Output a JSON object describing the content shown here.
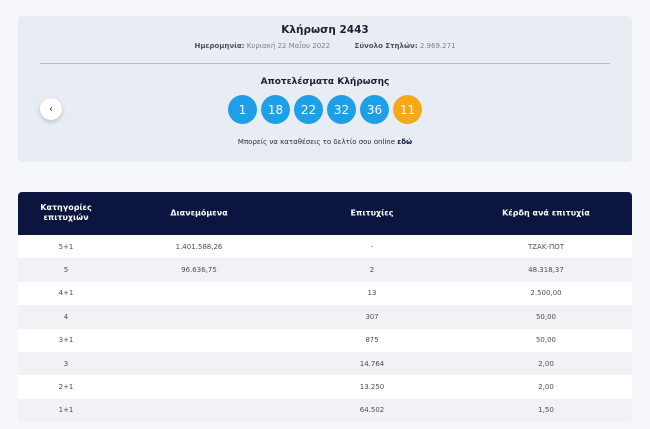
{
  "draw": {
    "title": "Κλήρωση 2443",
    "date_label": "Ημερομηνία:",
    "date_value": "Κυριακή 22 Μαΐου 2022",
    "columns_label": "Σύνολο Στηλών:",
    "columns_value": "2.969.271",
    "results_title": "Αποτελέσματα Κλήρωσης",
    "numbers": [
      "1",
      "18",
      "22",
      "32",
      "36"
    ],
    "bonus": "11",
    "online_text": "Μπορείς να καταθέσεις το δελτίο σου online",
    "online_link": "εδώ",
    "prev_label": "‹"
  },
  "table": {
    "headers": [
      "Κατηγορίες επιτυχιών",
      "Διανεμόμενα",
      "Επιτυχίες",
      "Κέρδη ανά επιτυχία"
    ],
    "rows": [
      [
        "5+1",
        "1.401.588,26",
        "-",
        "ΤΖΑΚ-ΠΟΤ"
      ],
      [
        "5",
        "96.636,75",
        "2",
        "48.318,37"
      ],
      [
        "4+1",
        "",
        "13",
        "2.500,00"
      ],
      [
        "4",
        "",
        "307",
        "50,00"
      ],
      [
        "3+1",
        "",
        "875",
        "50,00"
      ],
      [
        "3",
        "",
        "14.764",
        "2,00"
      ],
      [
        "2+1",
        "",
        "13.250",
        "2,00"
      ],
      [
        "1+1",
        "",
        "64.502",
        "1,50"
      ]
    ]
  },
  "colors": {
    "ball": "#1f9fe6",
    "bonus_ball": "#f4a91b",
    "header_bg": "#0c1540"
  }
}
